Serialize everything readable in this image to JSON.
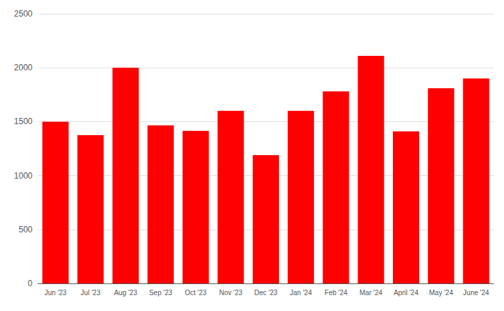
{
  "chart_data": {
    "type": "bar",
    "categories": [
      "Jun '23",
      "Jul '23",
      "Aug '23",
      "Sep '23",
      "Oct '23",
      "Nov '23",
      "Dec '23",
      "Jan '24",
      "Feb '24",
      "Mar '24",
      "April '24",
      "May '24",
      "June '24"
    ],
    "values": [
      1500,
      1375,
      2000,
      1465,
      1415,
      1600,
      1190,
      1600,
      1780,
      2110,
      1410,
      1810,
      1900
    ],
    "color": "#ff0000",
    "ylim": [
      0,
      2500
    ],
    "yticks": [
      0,
      500,
      1000,
      1500,
      2000,
      2500
    ],
    "grid": true
  }
}
